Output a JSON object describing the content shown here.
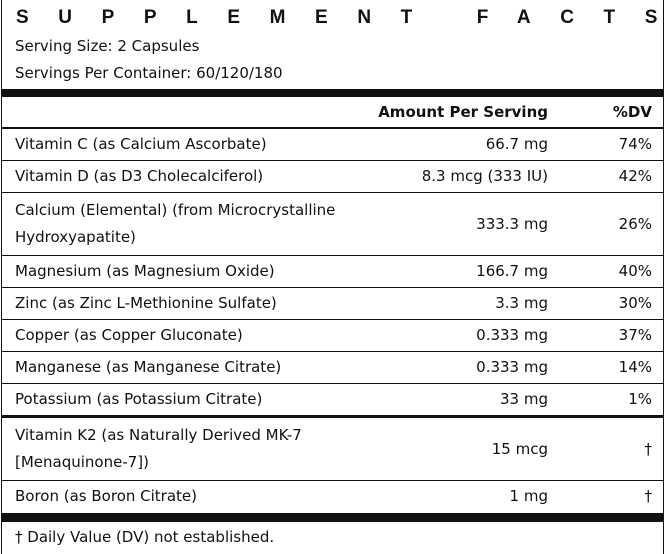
{
  "header": {
    "title": "SUPPLEMENT FACTS",
    "serving_size": "Serving Size: 2 Capsules",
    "servings_per_container": "Servings Per Container: 60/120/180"
  },
  "table": {
    "columns": {
      "amount": "Amount Per Serving",
      "dv": "%DV"
    },
    "rows": [
      [
        "Vitamin C (as Calcium Ascorbate)",
        "66.7 mg",
        "74%"
      ],
      [
        "Vitamin D (as D3 Cholecalciferol)",
        "8.3 mcg (333 IU)",
        "42%"
      ],
      [
        "Calcium (Elemental) (from Microcrystalline Hydroxyapatite)",
        "333.3 mg",
        "26%"
      ],
      [
        "Magnesium (as Magnesium Oxide)",
        "166.7 mg",
        "40%"
      ],
      [
        "Zinc (as Zinc L-Methionine Sulfate)",
        "3.3 mg",
        "30%"
      ],
      [
        "Copper (as Copper Gluconate)",
        "0.333 mg",
        "37%"
      ],
      [
        "Manganese (as Manganese Citrate)",
        "0.333 mg",
        "14%"
      ],
      [
        "Potassium (as Potassium Citrate)",
        "33 mg",
        "1%"
      ],
      [
        "Vitamin K2 (as Naturally Derived MK-7 [Menaquinone-7])",
        "15 mcg",
        "†"
      ],
      [
        "Boron (as Boron Citrate)",
        "1 mg",
        "†"
      ]
    ]
  },
  "footnote": "† Daily Value (DV) not established."
}
